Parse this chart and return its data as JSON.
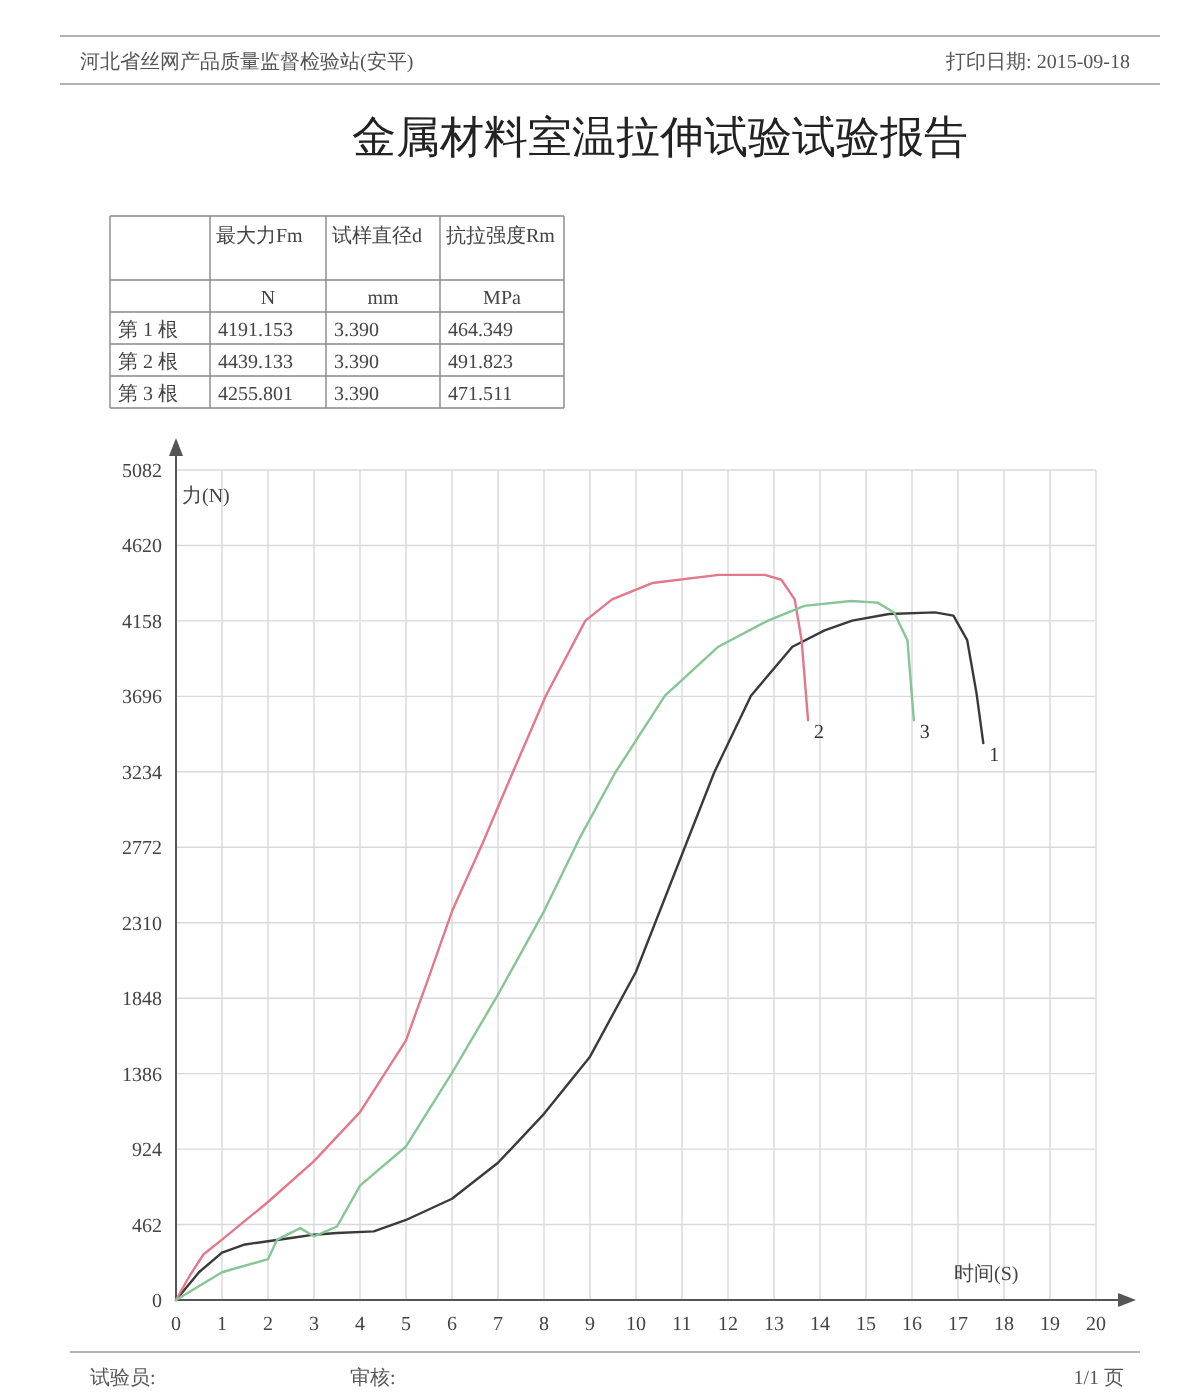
{
  "chart_data": {
    "type": "line",
    "title": "金属材料室温拉伸试验试验报告",
    "xlabel": "时间(S)",
    "ylabel": "力(N)",
    "annotations": [
      "河北省丝网产品质量监督检验站(安平)",
      "打印日期: 2015-09-18",
      "试验员:",
      "审核:",
      "1/1 页",
      "最大力Fm",
      "试样直径d",
      "抗拉强度Rm",
      "N",
      "mm",
      "MPa",
      "第 1 根",
      "4191.153",
      "3.390",
      "464.349",
      "第 2 根",
      "4439.133",
      "3.390",
      "491.823",
      "第 3 根",
      "4255.801",
      "3.390",
      "471.511"
    ],
    "xlim": [
      0,
      20
    ],
    "ylim": [
      0,
      5082
    ],
    "xticks": [
      0,
      1,
      2,
      3,
      4,
      5,
      6,
      7,
      8,
      9,
      10,
      11,
      12,
      13,
      14,
      15,
      16,
      17,
      18,
      19,
      20
    ],
    "yticks": [
      0,
      462,
      924,
      1386,
      1848,
      2310,
      2772,
      3234,
      3696,
      4158,
      4620,
      5082
    ],
    "grid": true,
    "line_style": "solid",
    "series": [
      {
        "name": "1",
        "color": "#3a3a3a",
        "x": [
          0,
          0.5,
          1,
          1.5,
          2,
          2.5,
          3,
          3.5,
          4.3,
          5,
          6,
          7,
          8,
          9,
          10,
          11.1,
          11.7,
          12.5,
          13.4,
          14.1,
          14.7,
          15.5,
          16.5,
          16.9,
          17.2,
          17.4,
          17.55
        ],
        "values": [
          0,
          170,
          290,
          340,
          360,
          380,
          400,
          410,
          420,
          490,
          620,
          840,
          1140,
          1490,
          2010,
          2800,
          3230,
          3700,
          4000,
          4100,
          4160,
          4200,
          4210,
          4190,
          4040,
          3720,
          3410
        ]
      },
      {
        "name": "2",
        "color": "#e2788a",
        "x": [
          0,
          0.3,
          0.6,
          1,
          2,
          3,
          4,
          5,
          5.5,
          6,
          6.67,
          7.32,
          8.04,
          8.9,
          9.48,
          10.35,
          11.8,
          12.8,
          13.16,
          13.45,
          13.6,
          13.74
        ],
        "values": [
          0,
          150,
          280,
          370,
          600,
          850,
          1150,
          1590,
          1980,
          2380,
          2800,
          3230,
          3700,
          4160,
          4290,
          4390,
          4440,
          4440,
          4410,
          4290,
          4040,
          3550
        ]
      },
      {
        "name": "3",
        "color": "#86c595",
        "x": [
          0,
          1,
          2,
          2.2,
          2.7,
          3,
          3.5,
          4,
          5,
          6,
          7,
          8,
          8.76,
          9.55,
          10.63,
          11.79,
          12.87,
          13.66,
          14.67,
          15.25,
          15.61,
          15.9,
          16.04
        ],
        "values": [
          0,
          170,
          250,
          370,
          440,
          390,
          450,
          700,
          940,
          1390,
          1870,
          2380,
          2820,
          3230,
          3700,
          4000,
          4160,
          4250,
          4280,
          4270,
          4210,
          4040,
          3550
        ]
      }
    ]
  }
}
